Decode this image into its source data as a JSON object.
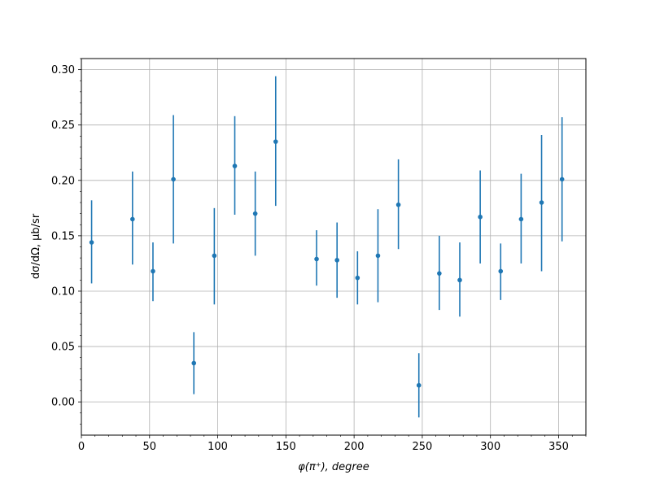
{
  "chart_data": {
    "type": "scatter",
    "title": "",
    "xlabel": "φ(π⁺), degree",
    "ylabel": "dσ/dΩ, μb/sr",
    "xlim": [
      0,
      370
    ],
    "ylim": [
      -0.03,
      0.31
    ],
    "grid": true,
    "x_ticks": [
      "0",
      "50",
      "100",
      "150",
      "200",
      "250",
      "300",
      "350"
    ],
    "y_ticks": [
      "0.00",
      "0.05",
      "0.10",
      "0.15",
      "0.20",
      "0.25",
      "0.30"
    ],
    "series": [
      {
        "color": "#1f77b4",
        "marker": "circle",
        "error_bars": true,
        "points": [
          {
            "x": 7.5,
            "y": 0.144,
            "ylo": 0.107,
            "yhi": 0.182
          },
          {
            "x": 37.5,
            "y": 0.165,
            "ylo": 0.124,
            "yhi": 0.208
          },
          {
            "x": 52.5,
            "y": 0.118,
            "ylo": 0.091,
            "yhi": 0.144
          },
          {
            "x": 67.5,
            "y": 0.201,
            "ylo": 0.143,
            "yhi": 0.259
          },
          {
            "x": 82.5,
            "y": 0.035,
            "ylo": 0.007,
            "yhi": 0.063
          },
          {
            "x": 97.5,
            "y": 0.132,
            "ylo": 0.088,
            "yhi": 0.175
          },
          {
            "x": 112.5,
            "y": 0.213,
            "ylo": 0.169,
            "yhi": 0.258
          },
          {
            "x": 127.5,
            "y": 0.17,
            "ylo": 0.132,
            "yhi": 0.208
          },
          {
            "x": 142.5,
            "y": 0.235,
            "ylo": 0.177,
            "yhi": 0.294
          },
          {
            "x": 172.5,
            "y": 0.129,
            "ylo": 0.105,
            "yhi": 0.155
          },
          {
            "x": 187.5,
            "y": 0.128,
            "ylo": 0.094,
            "yhi": 0.162
          },
          {
            "x": 202.5,
            "y": 0.112,
            "ylo": 0.088,
            "yhi": 0.136
          },
          {
            "x": 217.5,
            "y": 0.132,
            "ylo": 0.09,
            "yhi": 0.174
          },
          {
            "x": 232.5,
            "y": 0.178,
            "ylo": 0.138,
            "yhi": 0.219
          },
          {
            "x": 247.5,
            "y": 0.015,
            "ylo": -0.014,
            "yhi": 0.044
          },
          {
            "x": 262.5,
            "y": 0.116,
            "ylo": 0.083,
            "yhi": 0.15
          },
          {
            "x": 277.5,
            "y": 0.11,
            "ylo": 0.077,
            "yhi": 0.144
          },
          {
            "x": 292.5,
            "y": 0.167,
            "ylo": 0.125,
            "yhi": 0.209
          },
          {
            "x": 307.5,
            "y": 0.118,
            "ylo": 0.092,
            "yhi": 0.143
          },
          {
            "x": 322.5,
            "y": 0.165,
            "ylo": 0.125,
            "yhi": 0.206
          },
          {
            "x": 337.5,
            "y": 0.18,
            "ylo": 0.118,
            "yhi": 0.241
          },
          {
            "x": 352.5,
            "y": 0.201,
            "ylo": 0.145,
            "yhi": 0.257
          }
        ]
      }
    ]
  }
}
